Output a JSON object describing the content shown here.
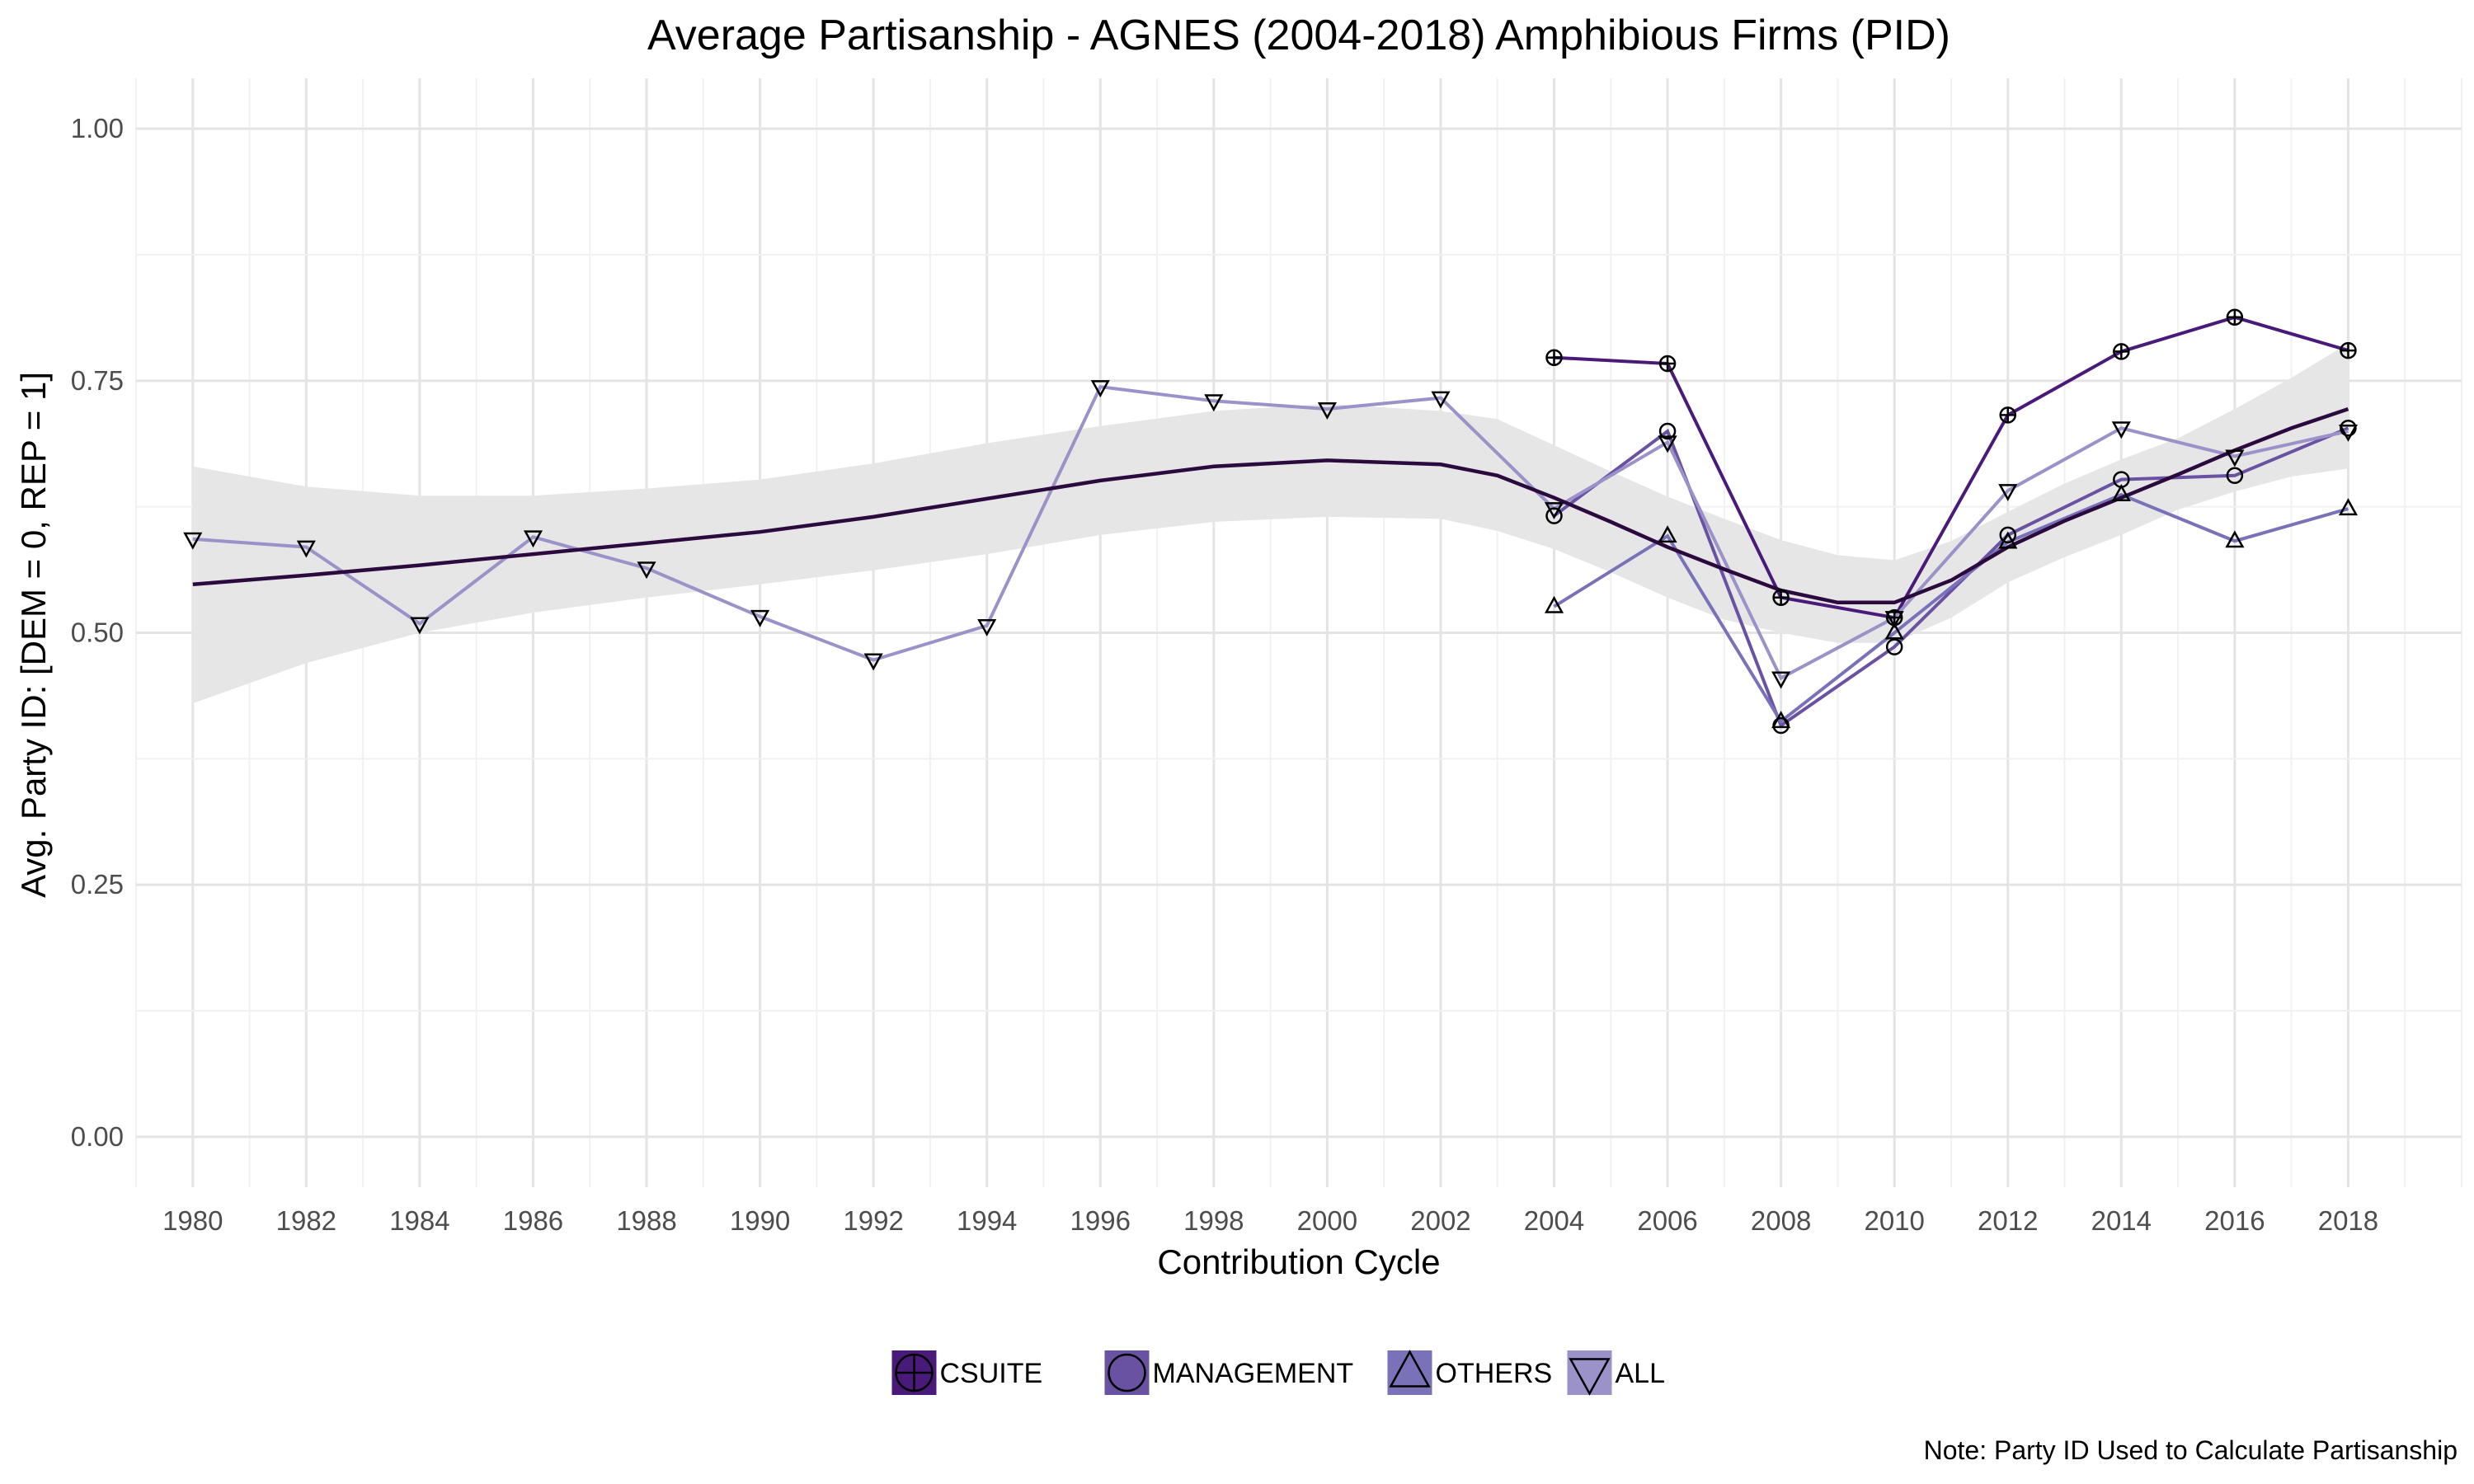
{
  "chart_data": {
    "type": "line",
    "title": "Average Partisanship - AGNES (2004-2018) Amphibious Firms (PID)",
    "xlabel": "Contribution Cycle",
    "ylabel": "Avg. Party ID: [DEM = 0, REP = 1]",
    "note": "Note: Party ID Used to Calculate Partisanship",
    "xlim": [
      1979,
      2020
    ],
    "ylim": [
      -0.05,
      1.05
    ],
    "x_ticks": [
      1980,
      1982,
      1984,
      1986,
      1988,
      1990,
      1992,
      1994,
      1996,
      1998,
      2000,
      2002,
      2004,
      2006,
      2008,
      2010,
      2012,
      2014,
      2016,
      2018
    ],
    "y_ticks": [
      0.0,
      0.25,
      0.5,
      0.75,
      1.0
    ],
    "y_tick_labels": [
      "0.00",
      "0.25",
      "0.50",
      "0.75",
      "1.00"
    ],
    "grid": true,
    "legend_position": "bottom",
    "series": [
      {
        "name": "CSUITE",
        "color": "#4a1a7a",
        "marker": "circle-cross",
        "x": [
          2004,
          2006,
          2008,
          2010,
          2012,
          2014,
          2016,
          2018
        ],
        "values": [
          0.773,
          0.767,
          0.535,
          0.515,
          0.716,
          0.779,
          0.813,
          0.78
        ]
      },
      {
        "name": "MANAGEMENT",
        "color": "#6a52a3",
        "marker": "circle",
        "x": [
          2004,
          2006,
          2008,
          2010,
          2012,
          2014,
          2016,
          2018
        ],
        "values": [
          0.616,
          0.7,
          0.408,
          0.486,
          0.597,
          0.652,
          0.656,
          0.703
        ]
      },
      {
        "name": "OTHERS",
        "color": "#7a72b8",
        "marker": "triangle-up",
        "x": [
          2004,
          2006,
          2008,
          2010,
          2012,
          2014,
          2016,
          2018
        ],
        "values": [
          0.526,
          0.596,
          0.412,
          0.5,
          0.59,
          0.637,
          0.591,
          0.623
        ]
      },
      {
        "name": "ALL",
        "color": "#9a92c8",
        "marker": "triangle-down",
        "x": [
          1980,
          1982,
          1984,
          1986,
          1988,
          1990,
          1992,
          1994,
          1996,
          1998,
          2000,
          2002,
          2004,
          2006,
          2008,
          2010,
          2012,
          2014,
          2016,
          2018
        ],
        "values": [
          0.593,
          0.585,
          0.509,
          0.595,
          0.564,
          0.516,
          0.473,
          0.507,
          0.744,
          0.73,
          0.722,
          0.733,
          0.623,
          0.689,
          0.455,
          0.515,
          0.641,
          0.703,
          0.675,
          0.7
        ]
      }
    ],
    "smooth": {
      "color": "#2b0a3d",
      "band_color": "#e6e6e6",
      "x": [
        1980,
        1982,
        1984,
        1986,
        1988,
        1990,
        1992,
        1994,
        1996,
        1998,
        2000,
        2002,
        2003,
        2004,
        2005,
        2006,
        2007,
        2008,
        2009,
        2010,
        2011,
        2012,
        2013,
        2014,
        2015,
        2016,
        2017,
        2018
      ],
      "y": [
        0.548,
        0.557,
        0.567,
        0.578,
        0.589,
        0.6,
        0.615,
        0.633,
        0.651,
        0.665,
        0.671,
        0.667,
        0.656,
        0.634,
        0.61,
        0.585,
        0.563,
        0.542,
        0.53,
        0.53,
        0.552,
        0.585,
        0.611,
        0.634,
        0.657,
        0.681,
        0.703,
        0.722
      ],
      "lower": [
        0.43,
        0.47,
        0.5,
        0.52,
        0.535,
        0.548,
        0.562,
        0.578,
        0.597,
        0.61,
        0.615,
        0.613,
        0.601,
        0.583,
        0.56,
        0.535,
        0.513,
        0.5,
        0.49,
        0.49,
        0.515,
        0.55,
        0.575,
        0.597,
        0.622,
        0.64,
        0.655,
        0.663
      ],
      "upper": [
        0.665,
        0.645,
        0.636,
        0.636,
        0.643,
        0.652,
        0.668,
        0.688,
        0.705,
        0.72,
        0.727,
        0.72,
        0.712,
        0.686,
        0.66,
        0.635,
        0.613,
        0.592,
        0.577,
        0.572,
        0.591,
        0.62,
        0.648,
        0.672,
        0.693,
        0.722,
        0.753,
        0.787
      ]
    }
  }
}
